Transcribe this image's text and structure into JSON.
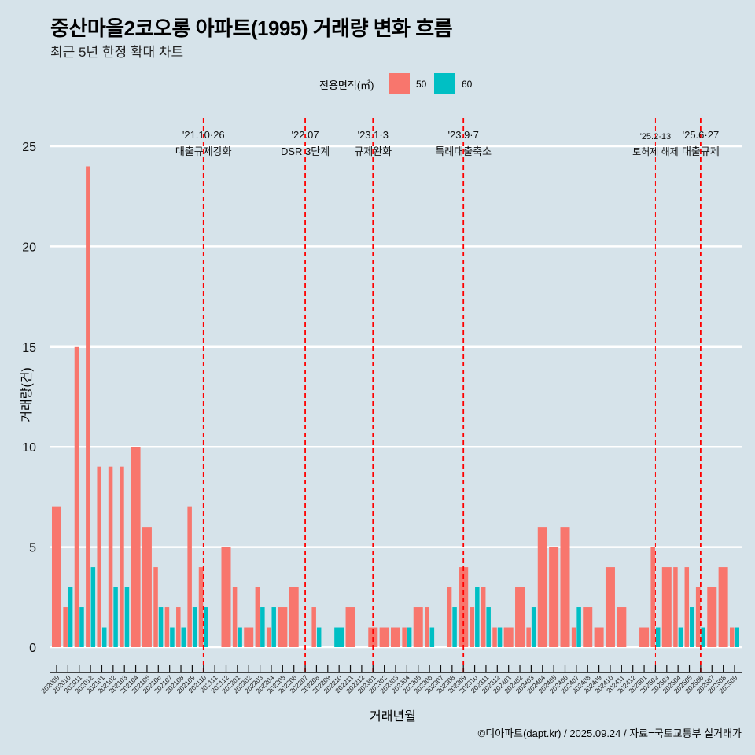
{
  "header": {
    "title": "중산마을2코오롱 아파트(1995) 거래량 변화 흐름",
    "subtitle": "최근 5년 한정 확대 차트"
  },
  "legend": {
    "title": "전용면적(㎡)",
    "items": [
      {
        "label": "50",
        "color": "#f8766d"
      },
      {
        "label": "60",
        "color": "#00bfc4"
      }
    ]
  },
  "caption": "©디아파트(dapt.kr) / 2025.09.24 / 자료=국토교통부 실거래가",
  "chart_data": {
    "type": "bar",
    "title": "중산마을2코오롱 아파트(1995) 거래량 변화 흐름",
    "subtitle": "최근 5년 한정 확대 차트",
    "xlabel": "거래년월",
    "ylabel": "거래량(건)",
    "ylim": [
      0,
      25
    ],
    "yticks": [
      "0",
      "5",
      "10",
      "15",
      "20",
      "25"
    ],
    "grid": true,
    "legend_position": "top",
    "categories": [
      "202009",
      "202010",
      "202011",
      "202012",
      "202101",
      "202102",
      "202103",
      "202104",
      "202105",
      "202106",
      "202107",
      "202108",
      "202109",
      "202110",
      "202111",
      "202112",
      "202201",
      "202202",
      "202203",
      "202204",
      "202205",
      "202206",
      "202207",
      "202208",
      "202209",
      "202210",
      "202211",
      "202212",
      "202301",
      "202302",
      "202303",
      "202304",
      "202305",
      "202306",
      "202307",
      "202308",
      "202309",
      "202310",
      "202311",
      "202312",
      "202401",
      "202402",
      "202403",
      "202404",
      "202405",
      "202406",
      "202407",
      "202408",
      "202409",
      "202410",
      "202411",
      "202412",
      "202501",
      "202502",
      "202503",
      "202504",
      "202505",
      "202506",
      "202507",
      "202508",
      "202509"
    ],
    "series": [
      {
        "name": "50",
        "color": "#f8766d",
        "values": [
          7,
          2,
          15,
          24,
          9,
          9,
          9,
          10,
          6,
          4,
          2,
          2,
          7,
          4,
          0,
          5,
          3,
          1,
          3,
          1,
          2,
          3,
          0,
          2,
          0,
          0,
          2,
          0,
          1,
          1,
          1,
          1,
          2,
          2,
          0,
          3,
          4,
          2,
          3,
          1,
          1,
          3,
          1,
          6,
          5,
          6,
          1,
          2,
          1,
          4,
          2,
          0,
          1,
          5,
          4,
          4,
          4,
          3,
          3,
          4,
          1
        ]
      },
      {
        "name": "60",
        "color": "#00bfc4",
        "values": [
          0,
          3,
          2,
          4,
          1,
          3,
          3,
          0,
          0,
          2,
          1,
          1,
          2,
          2,
          0,
          0,
          1,
          0,
          2,
          2,
          0,
          0,
          0,
          1,
          0,
          1,
          0,
          0,
          0,
          0,
          0,
          1,
          0,
          1,
          0,
          2,
          0,
          3,
          2,
          1,
          0,
          0,
          2,
          0,
          0,
          0,
          2,
          0,
          0,
          0,
          0,
          0,
          0,
          1,
          0,
          1,
          2,
          1,
          0,
          0,
          1
        ]
      }
    ],
    "annotations": [
      {
        "month": "202110",
        "date": "'21.10·26",
        "label": "대출규제강화",
        "style": "thick"
      },
      {
        "month": "202207",
        "date": "'22.07",
        "label": "DSR 3단계",
        "style": "thick"
      },
      {
        "month": "202301",
        "date": "'23.1·3",
        "label": "규제완화",
        "style": "thick"
      },
      {
        "month": "202309",
        "date": "'23.9·7",
        "label": "특례대출축소",
        "style": "thick"
      },
      {
        "month": "202502",
        "date": "'25.2·13",
        "label": "토허제 해제",
        "style": "thin"
      },
      {
        "month": "202506",
        "date": "'25.6·27",
        "label": "대출규제",
        "style": "thick"
      }
    ],
    "annotation_color": "#ff0000"
  }
}
